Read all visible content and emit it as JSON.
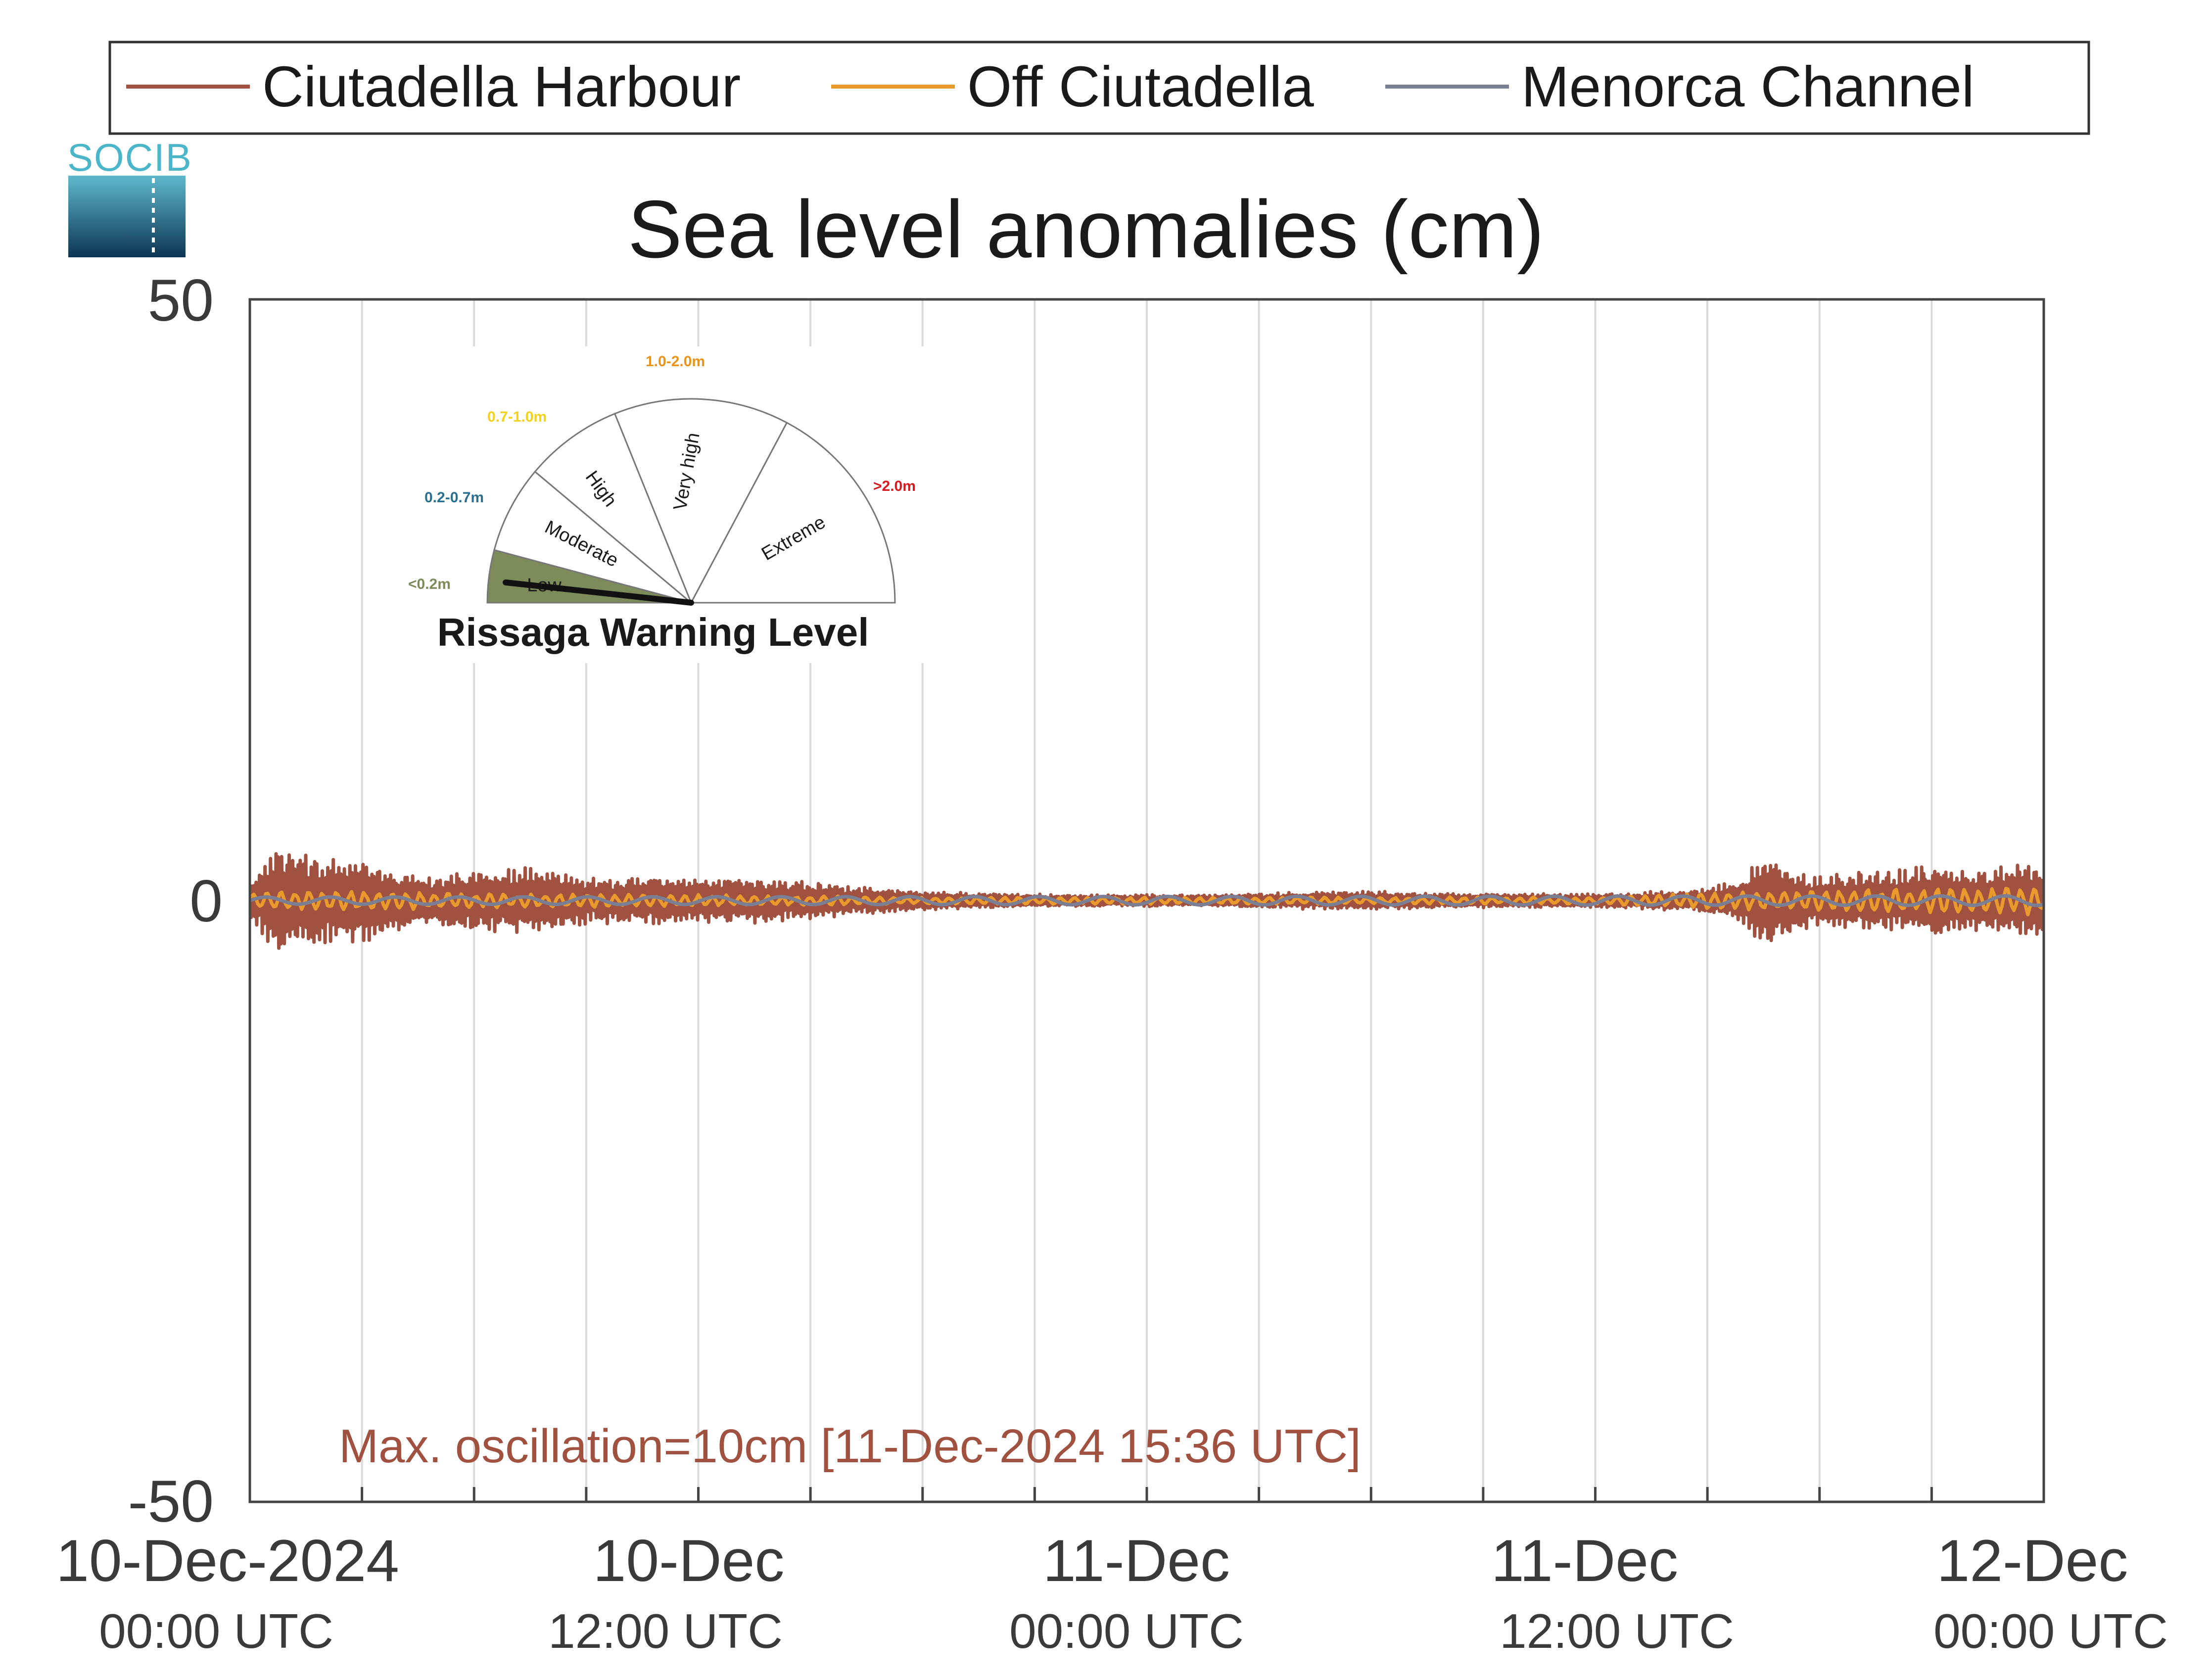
{
  "chart_data": {
    "type": "line",
    "title": "Sea level anomalies (cm)",
    "xlabel": "",
    "ylabel": "",
    "ylim": [
      -50,
      50
    ],
    "y_ticks": [
      "50",
      "0",
      "-50"
    ],
    "x_range_hours": [
      0,
      48
    ],
    "x_ticks": [
      {
        "date": "10-Dec-2024",
        "time": "00:00 UTC"
      },
      {
        "date": "10-Dec",
        "time": "12:00 UTC"
      },
      {
        "date": "11-Dec",
        "time": "00:00 UTC"
      },
      {
        "date": "11-Dec",
        "time": "12:00 UTC"
      },
      {
        "date": "12-Dec",
        "time": "00:00 UTC"
      }
    ],
    "grid": "vertical every 3 hours",
    "legend_position": "top",
    "series": [
      {
        "name": "Ciutadella Harbour",
        "color": "#a0513f",
        "envelope_cm": [
          [
            0,
            1.5
          ],
          [
            0.7,
            4.5
          ],
          [
            1.5,
            4
          ],
          [
            2.5,
            3.5
          ],
          [
            3,
            4
          ],
          [
            3.5,
            3
          ],
          [
            4.5,
            2
          ],
          [
            6,
            2.5
          ],
          [
            7,
            3
          ],
          [
            8,
            2.5
          ],
          [
            9,
            2
          ],
          [
            10,
            2
          ],
          [
            11,
            2
          ],
          [
            12,
            1.8
          ],
          [
            13,
            2
          ],
          [
            14,
            2
          ],
          [
            15,
            1.6
          ],
          [
            16,
            1.3
          ],
          [
            17,
            1
          ],
          [
            18,
            0.8
          ],
          [
            20,
            0.6
          ],
          [
            22,
            0.5
          ],
          [
            24,
            0.5
          ],
          [
            26,
            0.5
          ],
          [
            28,
            0.7
          ],
          [
            30,
            0.8
          ],
          [
            32,
            0.6
          ],
          [
            34,
            0.6
          ],
          [
            36,
            0.6
          ],
          [
            38,
            0.8
          ],
          [
            39,
            1
          ],
          [
            40,
            2
          ],
          [
            40.5,
            4
          ],
          [
            41,
            3
          ],
          [
            42,
            2
          ],
          [
            43,
            2.5
          ],
          [
            44,
            2.5
          ],
          [
            45,
            3
          ],
          [
            46,
            2.5
          ],
          [
            47,
            3
          ],
          [
            48,
            3
          ]
        ]
      },
      {
        "name": "Off Ciutadella",
        "color": "#e89a2d",
        "envelope_cm": [
          [
            0,
            0.7
          ],
          [
            3,
            0.9
          ],
          [
            6,
            0.6
          ],
          [
            12,
            0.5
          ],
          [
            18,
            0.3
          ],
          [
            24,
            0.3
          ],
          [
            30,
            0.3
          ],
          [
            36,
            0.3
          ],
          [
            40,
            0.8
          ],
          [
            44,
            1
          ],
          [
            48,
            1.2
          ]
        ]
      },
      {
        "name": "Menorca Channel",
        "color": "#7a7f94",
        "envelope_cm": [
          [
            0,
            0.3
          ],
          [
            48,
            0.4
          ]
        ]
      }
    ]
  },
  "legend": {
    "items": [
      {
        "label": "Ciutadella Harbour",
        "color": "#a0513f"
      },
      {
        "label": "Off Ciutadella",
        "color": "#e89a2d"
      },
      {
        "label": "Menorca Channel",
        "color": "#7a7f94"
      }
    ]
  },
  "logo": {
    "text": "SOCIB"
  },
  "annotation": {
    "text": "Max. oscillation=10cm [11-Dec-2024 15:36 UTC]"
  },
  "gauge": {
    "title": "Rissaga Warning Level",
    "needle_level": "Low",
    "segments": [
      {
        "label": "Low",
        "range": "<0.2m",
        "color": "#7d8a5a"
      },
      {
        "label": "Moderate",
        "range": "0.2-0.7m",
        "color": "#2a6f8f"
      },
      {
        "label": "High",
        "range": "0.7-1.0m",
        "color": "#f2d21b"
      },
      {
        "label": "Very high",
        "range": "1.0-2.0m",
        "color": "#e8931a"
      },
      {
        "label": "Extreme",
        "range": ">2.0m",
        "color": "#d71920"
      }
    ]
  }
}
